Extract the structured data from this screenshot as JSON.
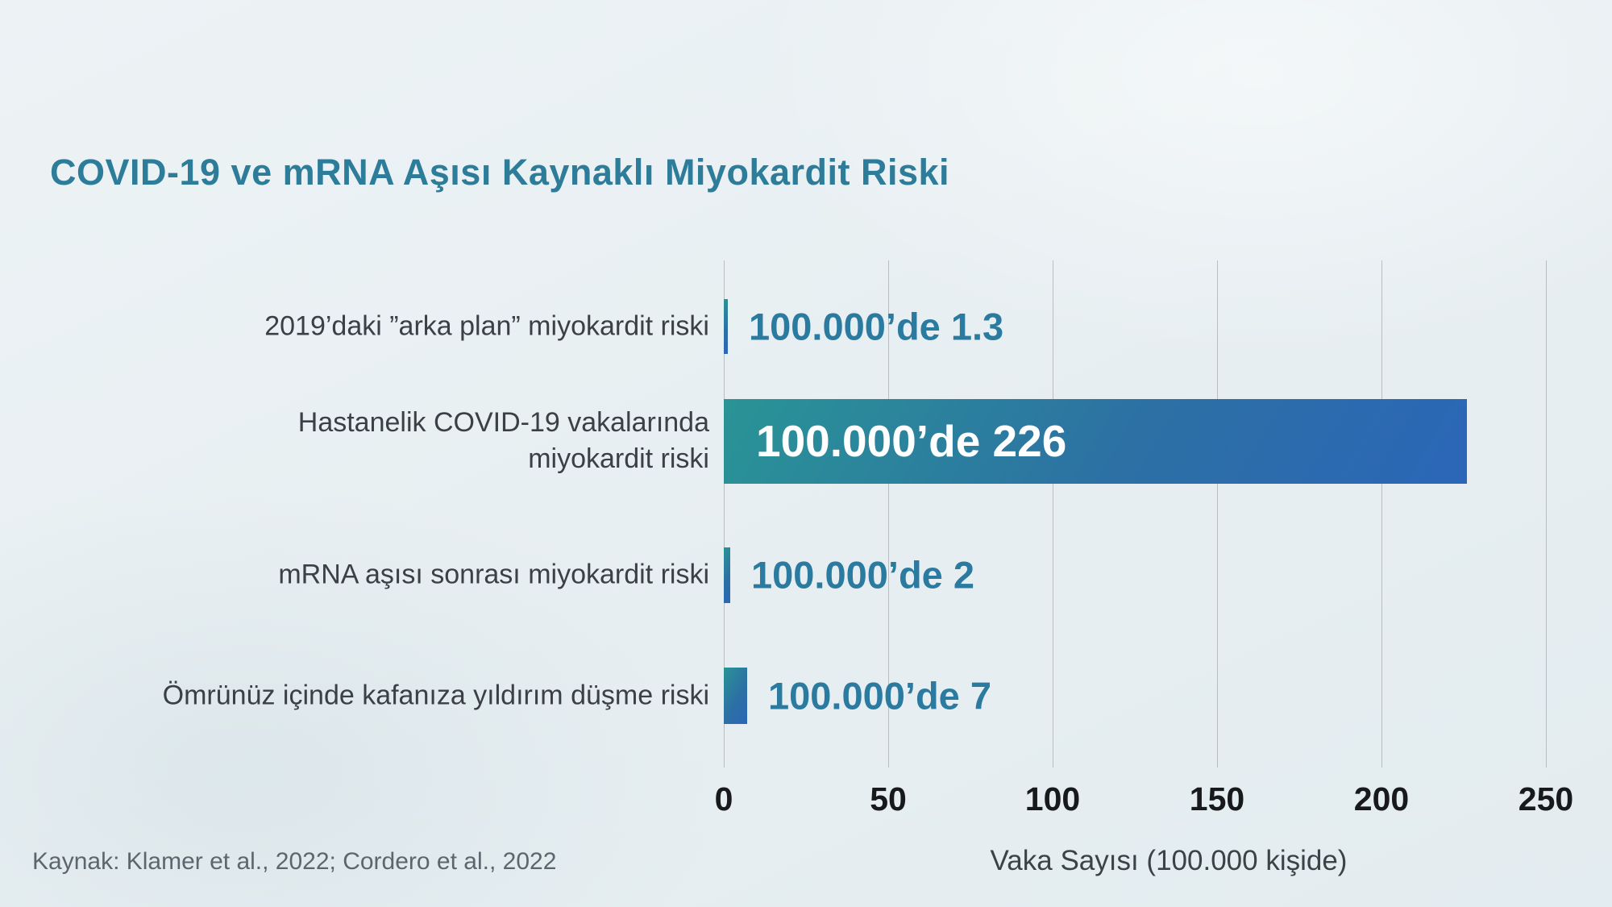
{
  "source": "Kaynak: Klamer et al., 2022; Cordero et al., 2022",
  "colors": {
    "title_teal": "#2d7c99",
    "value_teal": "#2b7aa0",
    "bar_gradient_start": "#2a9496",
    "bar_gradient_end": "#2b66b8",
    "gridline": "#b9bec1",
    "background": "#e8eff2",
    "tick_text": "#17191b",
    "label_text": "#3a4045"
  },
  "chart_data": {
    "type": "bar",
    "orientation": "horizontal",
    "title": "COVID-19 ve mRNA Aşısı Kaynaklı Miyokardit Riski",
    "xlabel": "Vaka Sayısı (100.000 kişide)",
    "xlim": [
      0,
      250
    ],
    "xticks": [
      "0",
      "50",
      "100",
      "150",
      "200",
      "250"
    ],
    "grid": "vertical",
    "legend": "none",
    "rows": [
      {
        "category_lines": [
          "2019’daki ”arka plan” miyokardit riski"
        ],
        "value": 1.3,
        "value_label": "100.000’de 1.3",
        "label_position": "outside"
      },
      {
        "category_lines": [
          "Hastanelik COVID-19 vakalarında",
          "miyokardit riski"
        ],
        "value": 226,
        "value_label": "100.000’de 226",
        "label_position": "inside"
      },
      {
        "category_lines": [
          "mRNA aşısı sonrası miyokardit riski"
        ],
        "value": 2,
        "value_label": "100.000’de 2",
        "label_position": "outside"
      },
      {
        "category_lines": [
          "Ömrünüz içinde kafanıza yıldırım düşme riski"
        ],
        "value": 7,
        "value_label": "100.000’de 7",
        "label_position": "outside"
      }
    ]
  }
}
